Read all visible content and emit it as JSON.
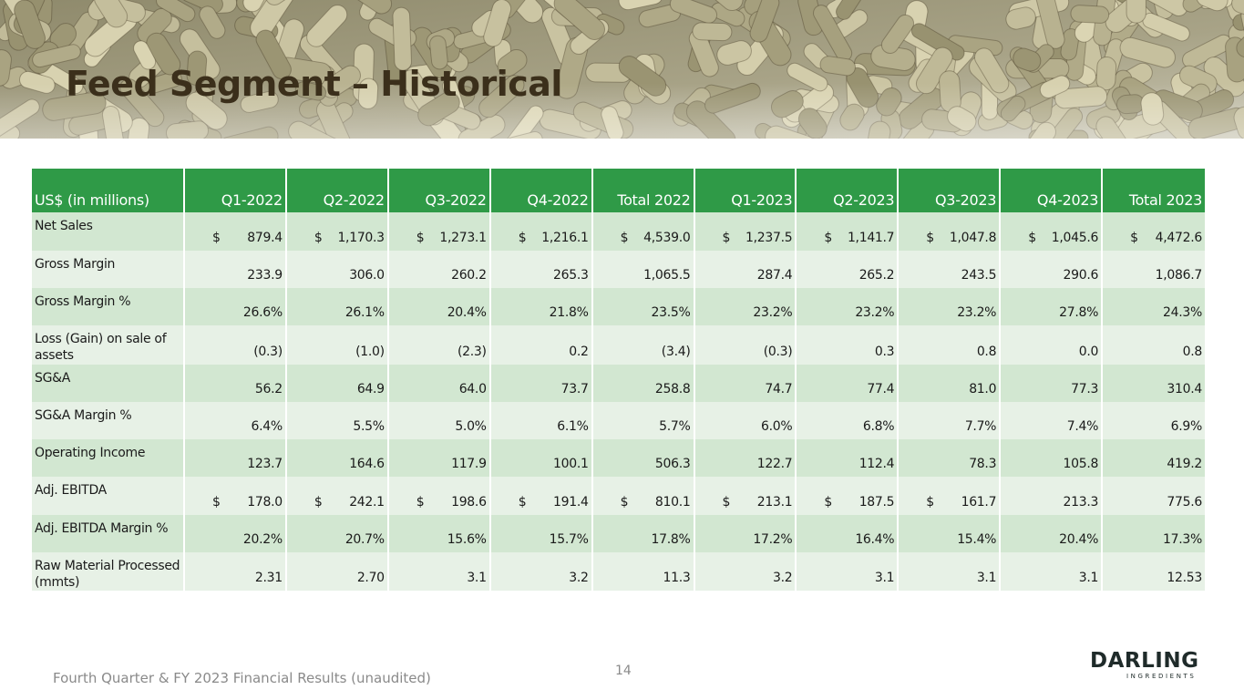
{
  "header": {
    "title": "Feed Segment – Historical"
  },
  "table": {
    "header": [
      "US$ (in millions)",
      "Q1-2022",
      "Q2-2022",
      "Q3-2022",
      "Q4-2022",
      "Total 2022",
      "Q1-2023",
      "Q2-2023",
      "Q3-2023",
      "Q4-2023",
      "Total 2023"
    ],
    "rows": [
      {
        "label": "Net Sales",
        "cells": [
          {
            "currency": "$",
            "amount": "879.4"
          },
          {
            "currency": "$",
            "amount": "1,170.3"
          },
          {
            "currency": "$",
            "amount": "1,273.1"
          },
          {
            "currency": "$",
            "amount": "1,216.1"
          },
          {
            "currency": "$",
            "amount": "4,539.0"
          },
          {
            "currency": "$",
            "amount": "1,237.5"
          },
          {
            "currency": "$",
            "amount": "1,141.7"
          },
          {
            "currency": "$",
            "amount": "1,047.8"
          },
          {
            "currency": "$",
            "amount": "1,045.6"
          },
          {
            "currency": "$",
            "amount": "4,472.6"
          }
        ]
      },
      {
        "label": "Gross Margin",
        "cells": [
          "233.9",
          "306.0",
          "260.2",
          "265.3",
          "1,065.5",
          "287.4",
          "265.2",
          "243.5",
          "290.6",
          "1,086.7"
        ]
      },
      {
        "label": "Gross Margin %",
        "cells": [
          "26.6%",
          "26.1%",
          "20.4%",
          "21.8%",
          "23.5%",
          "23.2%",
          "23.2%",
          "23.2%",
          "27.8%",
          "24.3%"
        ]
      },
      {
        "label": "Loss (Gain) on sale of assets",
        "cells": [
          "(0.3)",
          "(1.0)",
          "(2.3)",
          "0.2",
          "(3.4)",
          "(0.3)",
          "0.3",
          "0.8",
          "0.0",
          "0.8"
        ]
      },
      {
        "label": "SG&A",
        "cells": [
          "56.2",
          "64.9",
          "64.0",
          "73.7",
          "258.8",
          "74.7",
          "77.4",
          "81.0",
          "77.3",
          "310.4"
        ]
      },
      {
        "label": "SG&A Margin %",
        "cells": [
          "6.4%",
          "5.5%",
          "5.0%",
          "6.1%",
          "5.7%",
          "6.0%",
          "6.8%",
          "7.7%",
          "7.4%",
          "6.9%"
        ]
      },
      {
        "label": "Operating Income",
        "cells": [
          "123.7",
          "164.6",
          "117.9",
          "100.1",
          "506.3",
          "122.7",
          "112.4",
          "78.3",
          "105.8",
          "419.2"
        ]
      },
      {
        "label": "Adj. EBITDA",
        "cells": [
          {
            "currency": "$",
            "amount": "178.0"
          },
          {
            "currency": "$",
            "amount": "242.1"
          },
          {
            "currency": "$",
            "amount": "198.6"
          },
          {
            "currency": "$",
            "amount": "191.4"
          },
          {
            "currency": "$",
            "amount": "810.1"
          },
          {
            "currency": "$",
            "amount": "213.1"
          },
          {
            "currency": "$",
            "amount": "187.5"
          },
          {
            "currency": "$",
            "amount": "161.7"
          },
          "213.3",
          "775.6"
        ]
      },
      {
        "label": "Adj. EBITDA Margin %",
        "cells": [
          "20.2%",
          "20.7%",
          "15.6%",
          "15.7%",
          "17.8%",
          "17.2%",
          "16.4%",
          "15.4%",
          "20.4%",
          "17.3%"
        ]
      },
      {
        "label": "Raw Material Processed (mmts)",
        "cells": [
          "2.31",
          "2.70",
          "3.1",
          "3.2",
          "11.3",
          "3.2",
          "3.1",
          "3.1",
          "3.1",
          "12.53"
        ]
      }
    ]
  },
  "footer": {
    "text": "Fourth Quarter & FY 2023 Financial Results (unaudited)",
    "page": "14",
    "logo": "DARLING",
    "logo_sub": "INGREDIENTS"
  }
}
